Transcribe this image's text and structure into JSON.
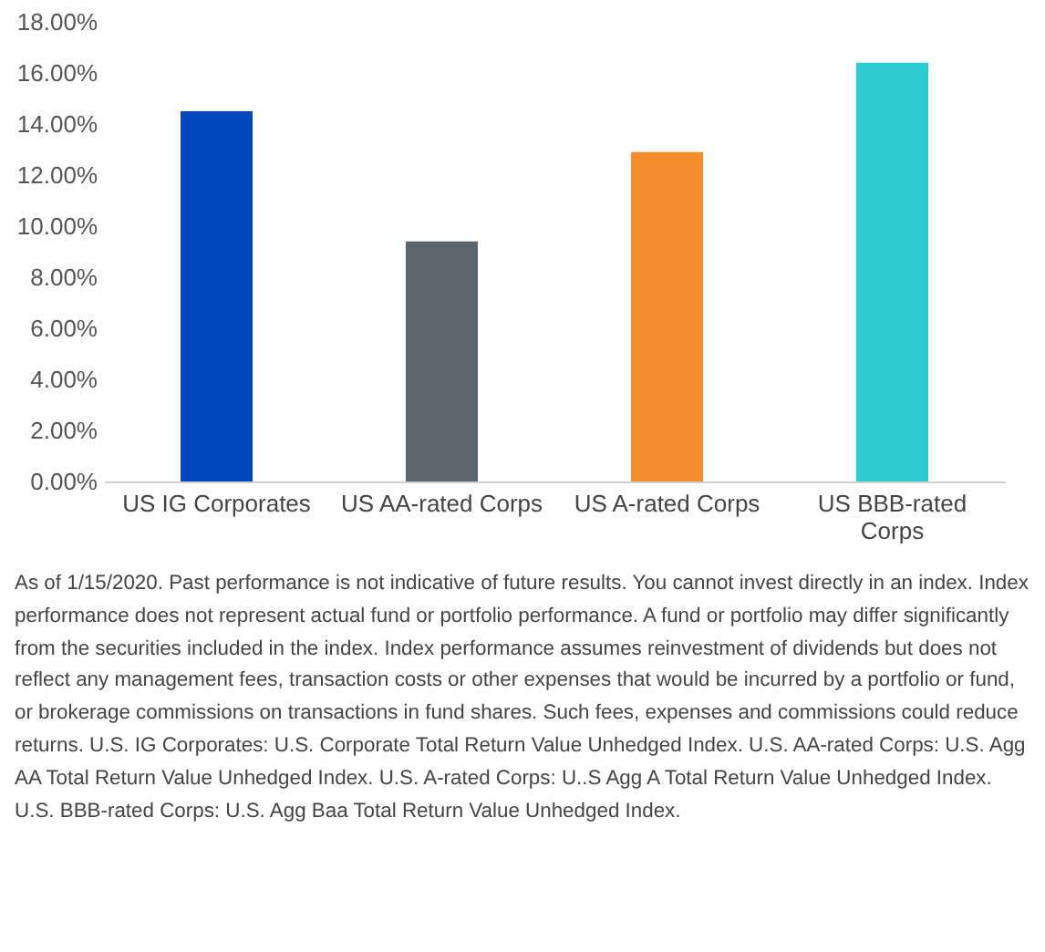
{
  "chart_data": {
    "type": "bar",
    "categories": [
      "US IG Corporates",
      "US AA-rated Corps",
      "US A-rated Corps",
      "US BBB-rated Corps"
    ],
    "values": [
      14.5,
      9.4,
      12.9,
      16.4
    ],
    "colors": [
      "#0047bb",
      "#5a656e",
      "#f28c2e",
      "#2dcbd2"
    ],
    "ylim": [
      0,
      18
    ],
    "yticks": [
      {
        "value": 0,
        "label": "0.00%"
      },
      {
        "value": 2,
        "label": "2.00%"
      },
      {
        "value": 4,
        "label": "4.00%"
      },
      {
        "value": 6,
        "label": "6.00%"
      },
      {
        "value": 8,
        "label": "8.00%"
      },
      {
        "value": 10,
        "label": "10.00%"
      },
      {
        "value": 12,
        "label": "12.00%"
      },
      {
        "value": 14,
        "label": "14.00%"
      },
      {
        "value": 16,
        "label": "16.00%"
      },
      {
        "value": 18,
        "label": "18.00%"
      }
    ],
    "grid": false,
    "annotations": [
      "As of 1/15/2020. Past performance is not indicative of future results. You cannot invest directly in an index. Index performance does not represent actual fund or portfolio performance.  A fund or portfolio may differ significantly from the securities included in the index. Index performance assumes reinvestment of dividends but does not reflect any management fees, transaction costs or other expenses that would be incurred by a portfolio or fund, or brokerage commissions on transactions in fund shares.  Such fees, expenses and commissions could reduce returns.  U.S. IG Corporates: U.S. Corporate Total Return Value Unhedged Index. U.S. AA-rated Corps: U.S. Agg AA Total Return Value Unhedged Index. U.S. A-rated Corps: U..S Agg A Total Return Value Unhedged Index. U.S. BBB-rated Corps: U.S. Agg Baa Total Return Value Unhedged Index."
    ]
  }
}
